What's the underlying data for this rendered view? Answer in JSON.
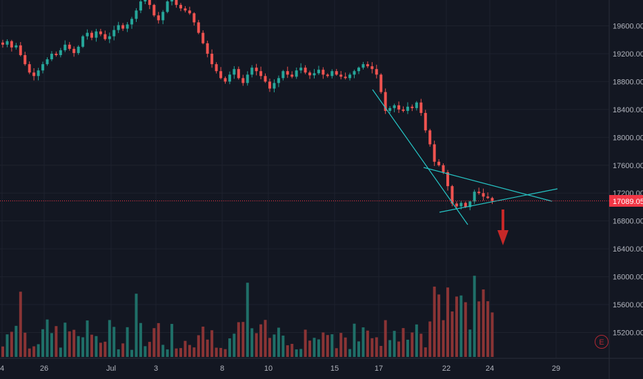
{
  "colors": {
    "background": "#131722",
    "grid": "#1e222d",
    "axis_text": "#b2b5be",
    "up": "#26a69a",
    "down": "#ef5350",
    "up_volume": "#1f6f68",
    "down_volume": "#8a3435",
    "trendline": "#26c6c6",
    "current_price": "#f23645",
    "arrow": "#c62828"
  },
  "events_badge": {
    "label": "E",
    "icon": "earnings-event-icon"
  },
  "annotations": {
    "arrow": "down-arrow-icon"
  },
  "chart_data": {
    "type": "candlestick",
    "y_axis": {
      "ticks": [
        15200,
        15600,
        16000,
        16400,
        16800,
        17200,
        17600,
        18000,
        18400,
        18800,
        19200,
        19600
      ],
      "tick_labels": [
        "15200.00",
        "15600.00",
        "16000.00",
        "16400.00",
        "16800.00",
        "17200.00",
        "17600.00",
        "18000.00",
        "18400.00",
        "18800.00",
        "19200.00",
        "19600.00"
      ],
      "range": [
        14860,
        20150
      ]
    },
    "x_axis": {
      "tick_labels": [
        "4",
        "26",
        "Jul",
        "3",
        "8",
        "10",
        "15",
        "17",
        "22",
        "24",
        "29"
      ]
    },
    "current_price": {
      "value": 17089.05,
      "label": "17089.05"
    },
    "closes": [
      19330,
      19380,
      19290,
      19320,
      19180,
      19050,
      18930,
      18880,
      18960,
      19050,
      19120,
      19200,
      19180,
      19250,
      19330,
      19270,
      19210,
      19300,
      19450,
      19500,
      19430,
      19520,
      19480,
      19410,
      19450,
      19540,
      19610,
      19560,
      19620,
      19700,
      19820,
      19950,
      20050,
      19900,
      19750,
      19680,
      19800,
      19950,
      20020,
      19900,
      19850,
      19820,
      19780,
      19650,
      19500,
      19350,
      19200,
      19050,
      18950,
      18850,
      18800,
      18900,
      18980,
      18850,
      18780,
      18900,
      19000,
      18950,
      18880,
      18800,
      18700,
      18780,
      18850,
      18950,
      18900,
      18870,
      18960,
      19000,
      18930,
      18890,
      18920,
      18970,
      18900,
      18880,
      18950,
      18900,
      18870,
      18850,
      18900,
      18950,
      19000,
      19050,
      19020,
      18980,
      18900,
      18650,
      18380,
      18420,
      18460,
      18400,
      18380,
      18440,
      18420,
      18500,
      18350,
      18100,
      17900,
      17650,
      17600,
      17500,
      17300,
      17050,
      17010,
      17060,
      17000,
      17080,
      17220,
      17200,
      17150,
      17130,
      17089
    ]
  }
}
